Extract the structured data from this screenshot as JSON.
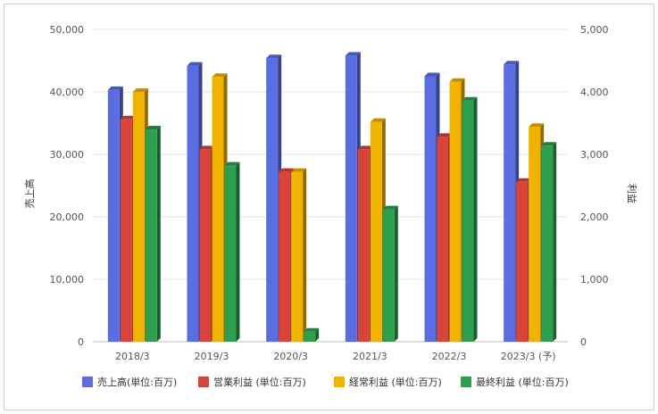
{
  "chart_data": {
    "type": "bar",
    "categories": [
      "2018/3",
      "2019/3",
      "2020/3",
      "2021/3",
      "2022/3",
      "2023/3 (予)"
    ],
    "series": [
      {
        "name": "売上高(単位:百万)",
        "axis": "left",
        "color": "#5b6ee1",
        "values": [
          40300,
          44200,
          45400,
          45800,
          42500,
          44400
        ]
      },
      {
        "name": "営業利益 (単位:百万)",
        "axis": "right",
        "color": "#d9443a",
        "values": [
          3560,
          3080,
          2720,
          3080,
          3280,
          2560
        ]
      },
      {
        "name": "経常利益 (単位:百万)",
        "axis": "right",
        "color": "#f0b400",
        "values": [
          4000,
          4240,
          2720,
          3520,
          4160,
          3440
        ]
      },
      {
        "name": "最終利益 (単位:百万)",
        "axis": "right",
        "color": "#2e9e4f",
        "values": [
          3400,
          2820,
          160,
          2120,
          3860,
          3140
        ]
      }
    ],
    "ylabel": "売上高",
    "y2label": "利益",
    "ylim": [
      0,
      50000
    ],
    "y2lim": [
      0,
      5000
    ],
    "yticks": [
      "0",
      "10,000",
      "20,000",
      "30,000",
      "40,000",
      "50,000"
    ],
    "y2ticks": [
      "0",
      "1,000",
      "2,000",
      "3,000",
      "4,000",
      "5,000"
    ],
    "grid": true,
    "legend": "bottom"
  }
}
